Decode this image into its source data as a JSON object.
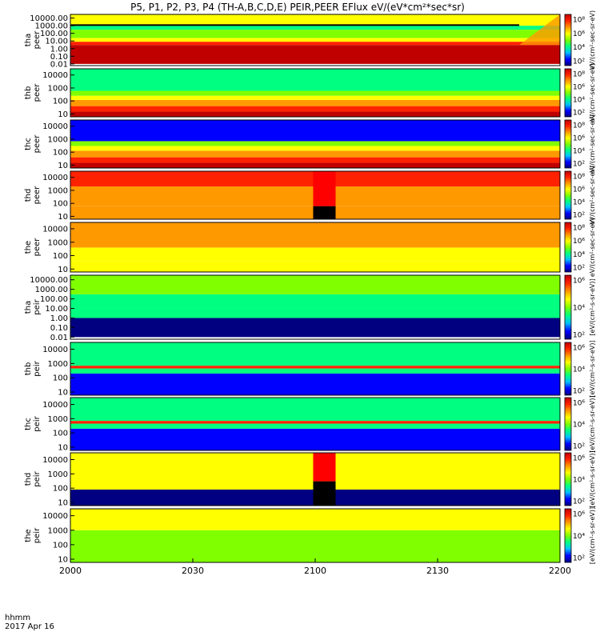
{
  "title": "P5, P1, P2, P3, P4 (TH-A,B,C,D,E) PEIR,PEER EFlux eV/(eV*cm²*sec*sr)",
  "time_axis": {
    "label_line1": "hhmm",
    "label_line2": "2017 Apr 16",
    "ticks": [
      "2000",
      "2030",
      "2100",
      "2130",
      "2200"
    ],
    "range_minutes": [
      0,
      120
    ]
  },
  "colors": {
    "scale": [
      "#000080",
      "#0000ff",
      "#00bfff",
      "#00ff80",
      "#80ff00",
      "#ffff00",
      "#ff9900",
      "#ff2200",
      "#c00000"
    ],
    "missing": "#000000",
    "fill_flag": "#ff0000"
  },
  "colorbar_label_electron": "eV/(cm²-sec-sr-eV)",
  "colorbar_label_ion": "[eV/(cm²-s-sr-eV)]",
  "chart_data": [
    {
      "type": "heatmap",
      "probe": "tha",
      "species": "peer",
      "ylabel": [
        "tha",
        "peer"
      ],
      "yscale": "log",
      "yticks": [
        "10000.00",
        "1000.00",
        "100.00",
        "10.00",
        "1.00",
        "0.10",
        "0.01"
      ],
      "cbar_ticks": [
        "10⁸",
        "10⁶",
        "10⁴",
        "10²"
      ],
      "bands": [
        {
          "ev": [
            0.01,
            3
          ],
          "level": 8
        },
        {
          "ev": [
            3,
            8
          ],
          "level": 7
        },
        {
          "ev": [
            8,
            25
          ],
          "level": 5
        },
        {
          "ev": [
            25,
            300
          ],
          "level": 4
        },
        {
          "ev": [
            300,
            1000
          ],
          "level": 3
        },
        {
          "ev": [
            1000,
            30000
          ],
          "level": 5
        }
      ],
      "line_ev": 1200,
      "ramp": {
        "start_min": 110,
        "ev": [
          3,
          30000
        ],
        "level": 6
      }
    },
    {
      "type": "heatmap",
      "probe": "thb",
      "species": "peer",
      "ylabel": [
        "thb",
        "peer"
      ],
      "yscale": "log",
      "yticks": [
        "10000",
        "1000",
        "100",
        "10"
      ],
      "cbar_ticks": [
        "10⁸",
        "10⁶",
        "10⁴",
        "10²"
      ],
      "bands": [
        {
          "ev": [
            6,
            15
          ],
          "level": 8
        },
        {
          "ev": [
            15,
            40
          ],
          "level": 7
        },
        {
          "ev": [
            40,
            120
          ],
          "level": 6
        },
        {
          "ev": [
            120,
            250
          ],
          "level": 5
        },
        {
          "ev": [
            250,
            600
          ],
          "level": 4
        },
        {
          "ev": [
            600,
            30000
          ],
          "level": 3
        }
      ]
    },
    {
      "type": "heatmap",
      "probe": "thc",
      "species": "peer",
      "ylabel": [
        "thc",
        "peer"
      ],
      "yscale": "log",
      "yticks": [
        "10000",
        "1000",
        "100",
        "10"
      ],
      "cbar_ticks": [
        "10⁸",
        "10⁶",
        "10⁴",
        "10²"
      ],
      "bands": [
        {
          "ev": [
            6,
            15
          ],
          "level": 8
        },
        {
          "ev": [
            15,
            40
          ],
          "level": 7
        },
        {
          "ev": [
            40,
            130
          ],
          "level": 6
        },
        {
          "ev": [
            130,
            300
          ],
          "level": 5
        },
        {
          "ev": [
            300,
            700
          ],
          "level": 4
        },
        {
          "ev": [
            700,
            30000
          ],
          "level": 1
        }
      ]
    },
    {
      "type": "heatmap",
      "probe": "thd",
      "species": "peer",
      "ylabel": [
        "thd",
        "peer"
      ],
      "yscale": "log",
      "yticks": [
        "10000",
        "1000",
        "100",
        "10"
      ],
      "cbar_ticks": [
        "10⁸",
        "10⁶",
        "10⁴",
        "10²"
      ],
      "bands": [
        {
          "ev": [
            6,
            60
          ],
          "level": 6
        },
        {
          "ev": [
            60,
            2000
          ],
          "level": 6
        },
        {
          "ev": [
            2000,
            30000
          ],
          "level": 7
        }
      ],
      "gap": {
        "minutes": [
          59.5,
          65
        ],
        "fill_ev": [
          60,
          30000
        ],
        "black_ev": [
          6,
          60
        ]
      }
    },
    {
      "type": "heatmap",
      "probe": "the",
      "species": "peer",
      "ylabel": [
        "the",
        "peer"
      ],
      "yscale": "log",
      "yticks": [
        "10000",
        "1000",
        "100",
        "10"
      ],
      "cbar_ticks": [
        "10⁸",
        "10⁶",
        "10⁴",
        "10²"
      ],
      "bands": [
        {
          "ev": [
            6,
            40
          ],
          "level": 5
        },
        {
          "ev": [
            40,
            400
          ],
          "level": 5
        },
        {
          "ev": [
            400,
            30000
          ],
          "level": 6
        }
      ]
    },
    {
      "type": "heatmap",
      "probe": "tha",
      "species": "peir",
      "ylabel": [
        "tha",
        "peir"
      ],
      "yscale": "log",
      "yticks": [
        "10000.00",
        "1000.00",
        "100.00",
        "10.00",
        "1.00",
        "0.10",
        "0.01"
      ],
      "cbar_ticks": [
        "10⁶",
        "10⁴",
        "10²"
      ],
      "bands": [
        {
          "ev": [
            0.01,
            1
          ],
          "level": 0
        },
        {
          "ev": [
            1,
            10
          ],
          "level": 3
        },
        {
          "ev": [
            10,
            300
          ],
          "level": 3
        },
        {
          "ev": [
            300,
            30000
          ],
          "level": 4
        }
      ]
    },
    {
      "type": "heatmap",
      "probe": "thb",
      "species": "peir",
      "ylabel": [
        "thb",
        "peir"
      ],
      "yscale": "log",
      "yticks": [
        "10000",
        "1000",
        "100",
        "10"
      ],
      "cbar_ticks": [
        "10⁶",
        "10⁴",
        "10²"
      ],
      "bands": [
        {
          "ev": [
            6,
            200
          ],
          "level": 1
        },
        {
          "ev": [
            200,
            450
          ],
          "level": 3
        },
        {
          "ev": [
            450,
            700
          ],
          "level": 7
        },
        {
          "ev": [
            700,
            30000
          ],
          "level": 3
        }
      ]
    },
    {
      "type": "heatmap",
      "probe": "thc",
      "species": "peir",
      "ylabel": [
        "thc",
        "peir"
      ],
      "yscale": "log",
      "yticks": [
        "10000",
        "1000",
        "100",
        "10"
      ],
      "cbar_ticks": [
        "10⁶",
        "10⁴",
        "10²"
      ],
      "bands": [
        {
          "ev": [
            6,
            200
          ],
          "level": 1
        },
        {
          "ev": [
            200,
            450
          ],
          "level": 3
        },
        {
          "ev": [
            450,
            700
          ],
          "level": 7
        },
        {
          "ev": [
            700,
            30000
          ],
          "level": 3
        }
      ]
    },
    {
      "type": "heatmap",
      "probe": "thd",
      "species": "peir",
      "ylabel": [
        "thd",
        "peir"
      ],
      "yscale": "log",
      "yticks": [
        "10000",
        "1000",
        "100",
        "10"
      ],
      "cbar_ticks": [
        "10⁶",
        "10⁴",
        "10²"
      ],
      "bands": [
        {
          "ev": [
            6,
            80
          ],
          "level": 0
        },
        {
          "ev": [
            80,
            30000
          ],
          "level": 5
        }
      ],
      "gap": {
        "minutes": [
          59.5,
          65
        ],
        "fill_ev": [
          300,
          30000
        ],
        "black_ev": [
          6,
          300
        ]
      }
    },
    {
      "type": "heatmap",
      "probe": "the",
      "species": "peir",
      "ylabel": [
        "the",
        "peir"
      ],
      "yscale": "log",
      "yticks": [
        "10000",
        "1000",
        "100",
        "10"
      ],
      "cbar_ticks": [
        "10⁶",
        "10⁴",
        "10²"
      ],
      "bands": [
        {
          "ev": [
            6,
            1000
          ],
          "level": 4
        },
        {
          "ev": [
            1000,
            30000
          ],
          "level": 5
        }
      ]
    }
  ]
}
